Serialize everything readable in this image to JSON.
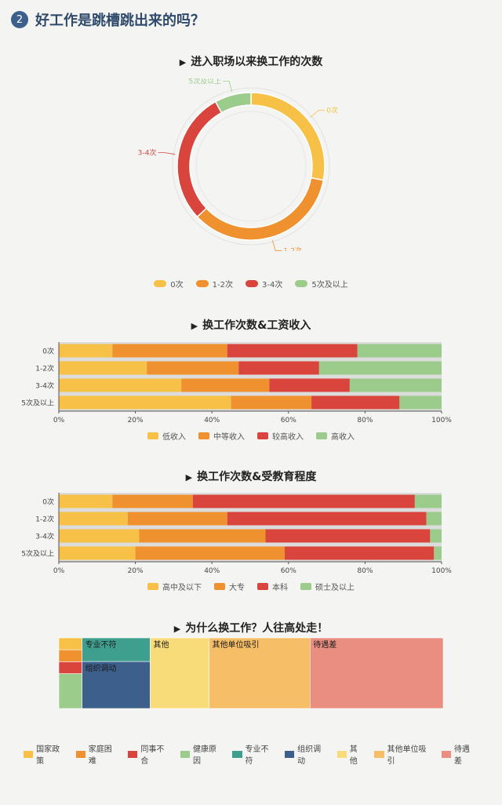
{
  "header": {
    "number": "2",
    "title": "好工作是跳槽跳出来的吗？"
  },
  "titles": {
    "donut": "进入职场以来换工作的次数",
    "income": "换工作次数&工资收入",
    "edu": "换工作次数&受教育程度",
    "reason": "为什么换工作？人往高处走！"
  },
  "chart_data": [
    {
      "type": "pie",
      "title": "进入职场以来换工作的次数",
      "categories": [
        "0次",
        "1-2次",
        "3-4次",
        "5次及以上"
      ],
      "values": [
        28,
        35,
        29,
        8
      ],
      "colors": [
        "#f7c046",
        "#f0912f",
        "#d9443c",
        "#9ccc8c"
      ],
      "legend": "bottom"
    },
    {
      "type": "bar",
      "orientation": "horizontal",
      "stacked": true,
      "title": "换工作次数&工资收入",
      "categories": [
        "0次",
        "1-2次",
        "3-4次",
        "5次及以上"
      ],
      "series": [
        {
          "name": "低收入",
          "values": [
            14,
            23,
            32,
            45
          ],
          "color": "#f7c046"
        },
        {
          "name": "中等收入",
          "values": [
            30,
            24,
            23,
            21
          ],
          "color": "#f0912f"
        },
        {
          "name": "较高收入",
          "values": [
            34,
            21,
            21,
            23
          ],
          "color": "#d9443c"
        },
        {
          "name": "高收入",
          "values": [
            22,
            32,
            24,
            11
          ],
          "color": "#9ccc8c"
        }
      ],
      "xlim": [
        0,
        100
      ],
      "xticks": [
        "0%",
        "20%",
        "40%",
        "60%",
        "80%",
        "100%"
      ],
      "legend": "bottom"
    },
    {
      "type": "bar",
      "orientation": "horizontal",
      "stacked": true,
      "title": "换工作次数&受教育程度",
      "categories": [
        "0次",
        "1-2次",
        "3-4次",
        "5次及以上"
      ],
      "series": [
        {
          "name": "高中及以下",
          "values": [
            14,
            18,
            21,
            20
          ],
          "color": "#f7c046"
        },
        {
          "name": "大专",
          "values": [
            21,
            26,
            33,
            39
          ],
          "color": "#f0912f"
        },
        {
          "name": "本科",
          "values": [
            58,
            52,
            43,
            39
          ],
          "color": "#d9443c"
        },
        {
          "name": "硕士及以上",
          "values": [
            7,
            4,
            3,
            2
          ],
          "color": "#9ccc8c"
        }
      ],
      "xlim": [
        0,
        100
      ],
      "xticks": [
        "0%",
        "20%",
        "40%",
        "60%",
        "80%",
        "100%"
      ],
      "legend": "bottom"
    },
    {
      "type": "treemap",
      "title": "为什么换工作？人往高处走！",
      "items": [
        {
          "name": "国家政策",
          "value": 1.1,
          "color": "#f7c046"
        },
        {
          "name": "家庭困难",
          "value": 1.1,
          "color": "#f0912f"
        },
        {
          "name": "同事不合",
          "value": 1.1,
          "color": "#d9443c"
        },
        {
          "name": "健康原因",
          "value": 3.2,
          "color": "#9ccc8c"
        },
        {
          "name": "专业不符",
          "value": 6.4,
          "color": "#3f9f8f"
        },
        {
          "name": "组织调动",
          "value": 12.7,
          "color": "#3c5f8c"
        },
        {
          "name": "其他",
          "value": 16.5,
          "color": "#f9dc7a"
        },
        {
          "name": "其他单位吸引",
          "value": 28.3,
          "color": "#f7be68"
        },
        {
          "name": "待遇差",
          "value": 37.3,
          "color": "#ea8e82"
        }
      ],
      "legend": "bottom"
    }
  ]
}
